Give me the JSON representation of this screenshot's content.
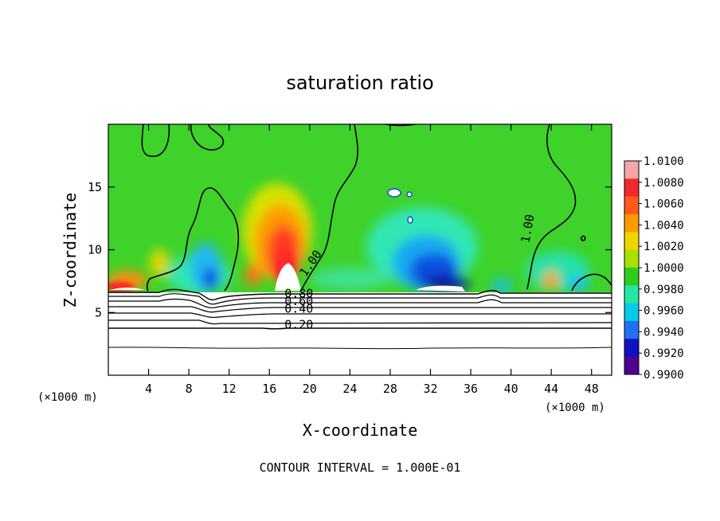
{
  "chart_data": {
    "type": "heatmap",
    "title": "saturation ratio",
    "xlabel": "X-coordinate",
    "ylabel": "Z-coordinate",
    "x_unit": "(×1000 m)",
    "z_unit": "(×1000 m)",
    "xlim": [
      0,
      50
    ],
    "ylim": [
      0,
      20
    ],
    "x_ticks": [
      4,
      8,
      12,
      16,
      20,
      24,
      28,
      32,
      36,
      40,
      44,
      48
    ],
    "y_ticks": [
      5,
      10,
      15
    ],
    "footer": "CONTOUR INTERVAL = 1.000E-01",
    "colorbar": {
      "min": 0.99,
      "max": 1.01,
      "labels": [
        "1.0100",
        "1.0080",
        "1.0060",
        "1.0040",
        "1.0020",
        "1.0000",
        "0.9980",
        "0.9960",
        "0.9940",
        "0.9920",
        "0.9900"
      ],
      "colors": [
        "#f6a6a6",
        "#ee2a2a",
        "#ff5a1a",
        "#ff9a00",
        "#f0d400",
        "#a8e000",
        "#2ecc1e",
        "#26e6a4",
        "#08c8e8",
        "#2070f0",
        "#1010c0",
        "#500090"
      ]
    },
    "contour_labels": [
      {
        "text": "1.00",
        "x": 19.6,
        "z": 7.8
      },
      {
        "text": "1.00",
        "x": 41.8,
        "z": 10.5
      },
      {
        "text": "0.80",
        "x": 17.5,
        "z": 6.2
      },
      {
        "text": "0.60",
        "x": 17.5,
        "z": 5.6
      },
      {
        "text": "0.40",
        "x": 17.5,
        "z": 5.0
      },
      {
        "text": "0.20",
        "x": 17.5,
        "z": 3.7
      }
    ],
    "features": [
      {
        "kind": "supersaturated",
        "x": 17.5,
        "z": 10.0,
        "value": 1.0065
      },
      {
        "kind": "subsaturated",
        "x": 31.5,
        "z": 8.5,
        "value": 0.992
      },
      {
        "kind": "subsaturated",
        "x": 10.0,
        "z": 8.2,
        "value": 0.996
      },
      {
        "kind": "supersaturated",
        "x": 1.5,
        "z": 7.2,
        "value": 1.008
      }
    ]
  }
}
